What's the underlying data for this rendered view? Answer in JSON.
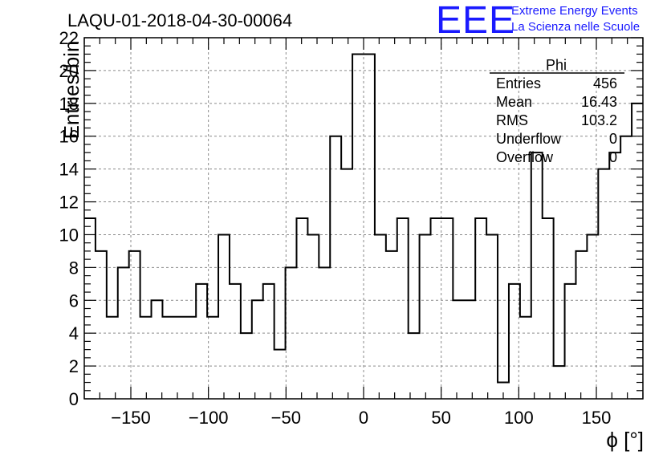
{
  "title": "LAQU-01-2018-04-30-00064",
  "logo": {
    "mark": "EEE",
    "line1": "Extreme Energy Events",
    "line2": "La Scienza nelle Scuole",
    "color": "#1a1aff"
  },
  "stats_box": {
    "name": "Phi",
    "rows": [
      {
        "label": "Entries",
        "value": "456"
      },
      {
        "label": "Mean",
        "value": "16.43"
      },
      {
        "label": "RMS",
        "value": "103.2"
      },
      {
        "label": "Underflow",
        "value": "0"
      },
      {
        "label": "Overflow",
        "value": "0"
      }
    ]
  },
  "chart_data": {
    "type": "bar",
    "style": "step-histogram",
    "xlabel": "ϕ [°]",
    "ylabel": "Entries/bin",
    "xlim": [
      -180,
      180
    ],
    "ylim": [
      0,
      22
    ],
    "bin_width": 7.2,
    "values": [
      11,
      9,
      5,
      8,
      9,
      5,
      6,
      5,
      5,
      5,
      7,
      5,
      10,
      7,
      4,
      6,
      7,
      3,
      8,
      11,
      10,
      8,
      16,
      14,
      21,
      21,
      10,
      9,
      11,
      4,
      10,
      11,
      11,
      6,
      6,
      11,
      10,
      1,
      7,
      5,
      15,
      11,
      2,
      7,
      9,
      10,
      14,
      15,
      16,
      18
    ],
    "xticks": [
      -150,
      -100,
      -50,
      0,
      50,
      100,
      150
    ],
    "xtick_labels": [
      "−150",
      "−100",
      "−50",
      "0",
      "50",
      "100",
      "150"
    ],
    "yticks": [
      0,
      2,
      4,
      6,
      8,
      10,
      12,
      14,
      16,
      18,
      20,
      22
    ],
    "ytick_labels": [
      "0",
      "2",
      "4",
      "6",
      "8",
      "10",
      "12",
      "14",
      "16",
      "18",
      "20",
      "22"
    ],
    "grid": true,
    "line_color": "#000000"
  }
}
